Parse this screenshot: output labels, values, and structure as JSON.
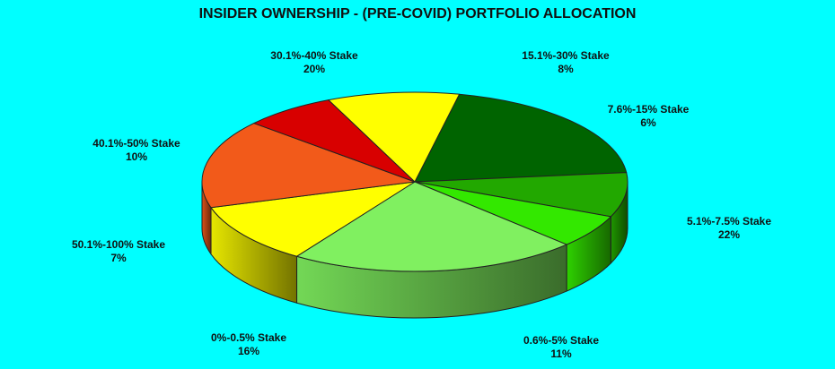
{
  "chart_data": {
    "type": "pie",
    "title": "INSIDER OWNERSHIP - (PRE-COVID) PORTFOLIO ALLOCATION",
    "slices": [
      {
        "label": "30.1%-40% Stake",
        "value_label": "20%",
        "value": 20,
        "color": "#006400"
      },
      {
        "label": "15.1%-30% Stake",
        "value_label": "8%",
        "value": 8,
        "color": "#22A800"
      },
      {
        "label": "7.6%-15% Stake",
        "value_label": "6%",
        "value": 6,
        "color": "#33E800"
      },
      {
        "label": "5.1%-7.5% Stake",
        "value_label": "22%",
        "value": 22,
        "color": "#80F060"
      },
      {
        "label": "0.6%-5% Stake",
        "value_label": "11%",
        "value": 11,
        "color": "#FFFF00"
      },
      {
        "label": "0%-0.5% Stake",
        "value_label": "16%",
        "value": 16,
        "color": "#F25A1A"
      },
      {
        "label": "50.1%-100% Stake",
        "value_label": "7%",
        "value": 7,
        "color": "#D80000"
      },
      {
        "label": "40.1%-50% Stake",
        "value_label": "10%",
        "value": 10,
        "color": "#FFFF00"
      }
    ]
  }
}
